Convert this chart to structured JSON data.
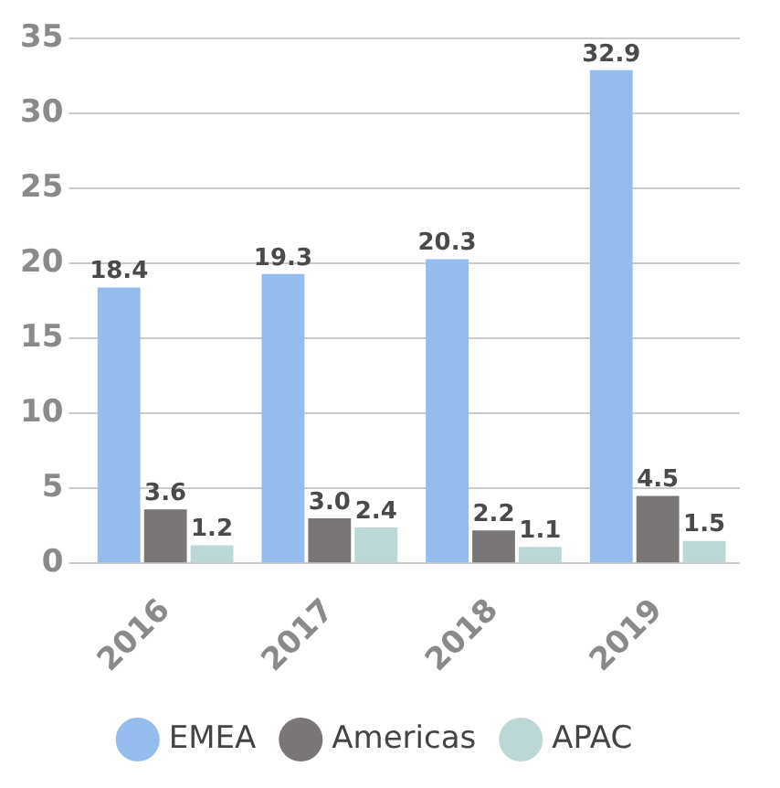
{
  "chart_data": {
    "type": "bar",
    "categories": [
      "2016",
      "2017",
      "2018",
      "2019"
    ],
    "series": [
      {
        "name": "EMEA",
        "color": "#94bdee",
        "values": [
          18.4,
          19.3,
          20.3,
          32.9
        ],
        "value_labels": [
          "18.4",
          "19.3",
          "20.3",
          "32.9"
        ]
      },
      {
        "name": "Americas",
        "color": "#7a7675",
        "values": [
          3.6,
          3.0,
          2.2,
          4.5
        ],
        "value_labels": [
          "3.6",
          "3.0",
          "2.2",
          "4.5"
        ]
      },
      {
        "name": "APAC",
        "color": "#bcd8d6",
        "values": [
          1.2,
          2.4,
          1.1,
          1.5
        ],
        "value_labels": [
          "1.2",
          "2.4",
          "1.1",
          "1.5"
        ]
      }
    ],
    "ylim": [
      0,
      35
    ],
    "yticks": [
      0,
      5,
      10,
      15,
      20,
      25,
      30,
      35
    ],
    "grid": "y",
    "legend": "bottom",
    "marker": "circle"
  }
}
